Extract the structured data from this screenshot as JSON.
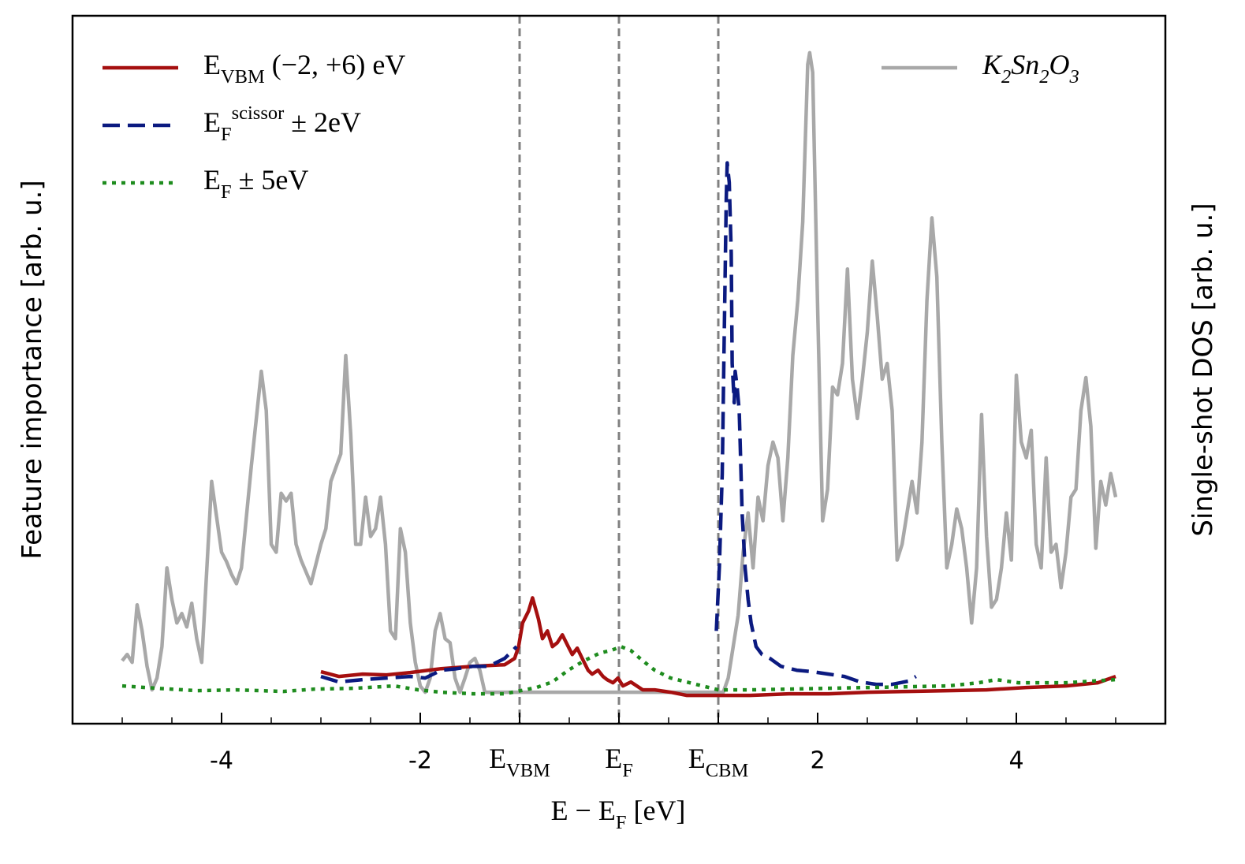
{
  "chart_data": {
    "type": "line",
    "xlabel": "E − E_{F} [eV]",
    "ylabel": "Feature importance [arb. u.]",
    "y2label": "Single-shot DOS [arb. u.]",
    "xlim": [
      -5.5,
      5.5
    ],
    "ylim": [
      0,
      900
    ],
    "y2lim": [
      0,
      900
    ],
    "xticks": [
      -4,
      -2,
      {
        "value": -1,
        "label": "E_{VBM}"
      },
      {
        "value": 0,
        "label": "E_{F}"
      },
      {
        "value": 1,
        "label": "E_{CBM}"
      },
      2,
      4
    ],
    "xticks_minor": [
      -5,
      -4.5,
      -3.5,
      -3,
      -2.5,
      -1.5,
      -0.5,
      0.5,
      1.5,
      2.5,
      3,
      3.5,
      4.5,
      5
    ],
    "vlines": [
      -1,
      0,
      1
    ],
    "legend": "upper left",
    "y2_legend": "upper right",
    "series": [
      {
        "name": "E_{VBM} (−2, +6) eV",
        "color": "#a50f0f",
        "dash": "solid",
        "x": [
          -3.0,
          -2.82,
          -2.58,
          -2.34,
          -2.1,
          -1.79,
          -1.47,
          -1.15,
          -1.05,
          -1.01,
          -0.97,
          -0.91,
          -0.87,
          -0.81,
          -0.77,
          -0.72,
          -0.67,
          -0.62,
          -0.57,
          -0.51,
          -0.47,
          -0.42,
          -0.37,
          -0.31,
          -0.27,
          -0.21,
          -0.16,
          -0.12,
          -0.06,
          -0.01,
          0.04,
          0.12,
          0.24,
          0.36,
          0.52,
          0.68,
          0.92,
          1.32,
          1.71,
          2.11,
          2.51,
          2.91,
          3.31,
          3.7,
          4.1,
          4.5,
          4.82,
          5.0
        ],
        "values": [
          66,
          60,
          63,
          62,
          65,
          70,
          73,
          75,
          83,
          98,
          128,
          143,
          160,
          133,
          108,
          118,
          98,
          103,
          113,
          98,
          88,
          96,
          83,
          68,
          63,
          68,
          60,
          56,
          52,
          58,
          48,
          53,
          43,
          43,
          40,
          36,
          36,
          36,
          38,
          38,
          40,
          41,
          42,
          43,
          46,
          48,
          52,
          60
        ]
      },
      {
        "name": "E_{F}^{scissor} ± 2eV",
        "color": "#0b1a80",
        "dash": "dashed",
        "x": [
          -3.0,
          -2.82,
          -2.58,
          -2.34,
          -2.1,
          -1.95,
          -1.79,
          -1.63,
          -1.47,
          -1.31,
          -1.15,
          -1.03,
          0,
          0.98,
          1.01,
          1.04,
          1.06,
          1.08,
          1.09,
          1.11,
          1.13,
          1.14,
          1.16,
          1.17,
          1.19,
          1.21,
          1.22,
          1.24,
          1.27,
          1.3,
          1.33,
          1.38,
          1.44,
          1.52,
          1.63,
          1.79,
          1.95,
          2.11,
          2.27,
          2.43,
          2.59,
          2.75,
          2.91,
          2.99
        ],
        "values": [
          60,
          53,
          56,
          58,
          60,
          58,
          68,
          70,
          73,
          73,
          83,
          98,
          null,
          118,
          198,
          318,
          498,
          668,
          713,
          688,
          598,
          458,
          408,
          448,
          428,
          398,
          358,
          268,
          198,
          158,
          128,
          98,
          88,
          83,
          73,
          68,
          66,
          63,
          60,
          53,
          50,
          50,
          54,
          60
        ]
      },
      {
        "name": "E_{F} ± 5eV",
        "color": "#1e8c1e",
        "dash": "dotted",
        "x": [
          -5.0,
          -4.65,
          -4.25,
          -3.85,
          -3.38,
          -3.06,
          -2.66,
          -2.26,
          -2.02,
          -1.79,
          -1.47,
          -1.15,
          -0.83,
          -0.67,
          -0.51,
          -0.35,
          -0.19,
          -0.08,
          0.02,
          0.12,
          0.24,
          0.36,
          0.52,
          0.68,
          0.84,
          1.0,
          1.32,
          1.71,
          2.51,
          3.31,
          3.62,
          3.8,
          4.02,
          4.5,
          5.0
        ],
        "values": [
          48,
          45,
          42,
          43,
          41,
          44,
          45,
          48,
          43,
          40,
          38,
          38,
          46,
          53,
          68,
          80,
          90,
          93,
          98,
          93,
          80,
          68,
          58,
          53,
          48,
          43,
          43,
          44,
          46,
          48,
          52,
          56,
          52,
          52,
          56
        ]
      },
      {
        "name": "K_{2}Sn_{2}O_{3}",
        "color": "#a8a8a8",
        "dash": "solid",
        "axis": "y2",
        "x": [
          -5,
          -4.95,
          -4.9,
          -4.85,
          -4.8,
          -4.75,
          -4.7,
          -4.65,
          -4.6,
          -4.55,
          -4.5,
          -4.45,
          -4.4,
          -4.35,
          -4.3,
          -4.25,
          -4.2,
          -4.1,
          -4.0,
          -3.95,
          -3.9,
          -3.85,
          -3.8,
          -3.7,
          -3.6,
          -3.55,
          -3.5,
          -3.45,
          -3.4,
          -3.35,
          -3.3,
          -3.25,
          -3.2,
          -3.1,
          -3.0,
          -2.95,
          -2.9,
          -2.8,
          -2.75,
          -2.7,
          -2.65,
          -2.6,
          -2.55,
          -2.5,
          -2.45,
          -2.4,
          -2.35,
          -2.3,
          -2.25,
          -2.2,
          -2.15,
          -2.1,
          -2.05,
          -2.0,
          -1.95,
          -1.9,
          -1.85,
          -1.8,
          -1.75,
          -1.7,
          -1.65,
          -1.6,
          -1.55,
          -1.5,
          -1.45,
          -1.4,
          -1.35,
          -1.3,
          1.05,
          1.1,
          1.15,
          1.2,
          1.25,
          1.3,
          1.35,
          1.4,
          1.45,
          1.5,
          1.55,
          1.6,
          1.65,
          1.7,
          1.75,
          1.8,
          1.85,
          1.9,
          1.92,
          1.95,
          2.0,
          2.05,
          2.1,
          2.15,
          2.2,
          2.25,
          2.3,
          2.35,
          2.4,
          2.45,
          2.5,
          2.55,
          2.6,
          2.65,
          2.7,
          2.75,
          2.8,
          2.85,
          2.9,
          2.95,
          3.0,
          3.05,
          3.1,
          3.15,
          3.2,
          3.25,
          3.3,
          3.35,
          3.4,
          3.45,
          3.5,
          3.55,
          3.6,
          3.65,
          3.7,
          3.75,
          3.8,
          3.85,
          3.9,
          3.95,
          4.0,
          4.05,
          4.1,
          4.15,
          4.2,
          4.25,
          4.3,
          4.35,
          4.4,
          4.45,
          4.5,
          4.55,
          4.6,
          4.65,
          4.7,
          4.75,
          4.8,
          4.85,
          4.9,
          4.95,
          5.0
        ],
        "values": [
          80,
          88,
          78,
          151,
          118,
          73,
          43,
          58,
          98,
          198,
          158,
          128,
          140,
          123,
          153,
          108,
          78,
          308,
          218,
          206,
          190,
          178,
          198,
          328,
          448,
          398,
          228,
          218,
          293,
          283,
          293,
          228,
          208,
          178,
          228,
          248,
          308,
          343,
          468,
          368,
          228,
          228,
          288,
          238,
          248,
          288,
          228,
          118,
          108,
          248,
          218,
          128,
          78,
          48,
          40,
          58,
          118,
          140,
          108,
          103,
          58,
          40,
          58,
          78,
          83,
          68,
          40,
          40,
          40,
          58,
          98,
          138,
          218,
          268,
          198,
          288,
          258,
          328,
          358,
          338,
          258,
          338,
          468,
          538,
          638,
          838,
          853,
          828,
          528,
          258,
          298,
          428,
          418,
          458,
          578,
          438,
          388,
          438,
          498,
          588,
          518,
          438,
          458,
          398,
          208,
          228,
          268,
          308,
          268,
          358,
          538,
          643,
          568,
          358,
          198,
          228,
          273,
          248,
          198,
          128,
          198,
          393,
          238,
          148,
          158,
          198,
          268,
          208,
          443,
          358,
          338,
          373,
          228,
          198,
          338,
          218,
          228,
          173,
          218,
          288,
          298,
          398,
          440,
          378,
          223,
          308,
          278,
          318,
          288
        ]
      }
    ]
  }
}
